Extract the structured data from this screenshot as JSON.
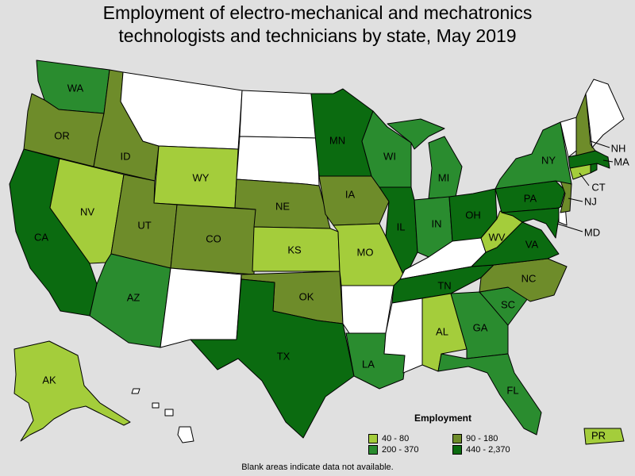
{
  "title_line1": "Employment of electro-mechanical and mechatronics",
  "title_line2": "technologists and technicians by state, May 2019",
  "note": "Blank areas indicate data not available.",
  "legend": {
    "title": "Employment",
    "items": [
      {
        "label": "40 - 80",
        "color": "#a4cd3b"
      },
      {
        "label": "90 - 180",
        "color": "#6e8c2a"
      },
      {
        "label": "200 - 370",
        "color": "#2a8c2f"
      },
      {
        "label": "440 - 2,370",
        "color": "#0b6b10"
      }
    ]
  },
  "colors": {
    "blank": "#ffffff",
    "c1": "#a4cd3b",
    "c2": "#6e8c2a",
    "c3": "#2a8c2f",
    "c4": "#0b6b10",
    "background": "#e0e0e0"
  },
  "states": [
    {
      "abbr": "WA",
      "class": "c3"
    },
    {
      "abbr": "OR",
      "class": "c2"
    },
    {
      "abbr": "CA",
      "class": "c4"
    },
    {
      "abbr": "NV",
      "class": "c1"
    },
    {
      "abbr": "ID",
      "class": "c2"
    },
    {
      "abbr": "MT",
      "class": "blank"
    },
    {
      "abbr": "WY",
      "class": "c1"
    },
    {
      "abbr": "UT",
      "class": "c2"
    },
    {
      "abbr": "AZ",
      "class": "c3"
    },
    {
      "abbr": "CO",
      "class": "c2"
    },
    {
      "abbr": "NM",
      "class": "blank"
    },
    {
      "abbr": "ND",
      "class": "blank"
    },
    {
      "abbr": "SD",
      "class": "blank"
    },
    {
      "abbr": "NE",
      "class": "c2"
    },
    {
      "abbr": "KS",
      "class": "c1"
    },
    {
      "abbr": "OK",
      "class": "c2"
    },
    {
      "abbr": "TX",
      "class": "c4"
    },
    {
      "abbr": "MN",
      "class": "c4"
    },
    {
      "abbr": "IA",
      "class": "c2"
    },
    {
      "abbr": "MO",
      "class": "c1"
    },
    {
      "abbr": "AR",
      "class": "blank"
    },
    {
      "abbr": "LA",
      "class": "c3"
    },
    {
      "abbr": "WI",
      "class": "c3"
    },
    {
      "abbr": "IL",
      "class": "c4"
    },
    {
      "abbr": "MI",
      "class": "c3"
    },
    {
      "abbr": "IN",
      "class": "c3"
    },
    {
      "abbr": "OH",
      "class": "c4"
    },
    {
      "abbr": "KY",
      "class": "blank"
    },
    {
      "abbr": "TN",
      "class": "c4"
    },
    {
      "abbr": "MS",
      "class": "blank"
    },
    {
      "abbr": "AL",
      "class": "c1"
    },
    {
      "abbr": "GA",
      "class": "c3"
    },
    {
      "abbr": "FL",
      "class": "c3"
    },
    {
      "abbr": "SC",
      "class": "c3"
    },
    {
      "abbr": "NC",
      "class": "c2"
    },
    {
      "abbr": "VA",
      "class": "c4"
    },
    {
      "abbr": "WV",
      "class": "c1"
    },
    {
      "abbr": "PA",
      "class": "c4"
    },
    {
      "abbr": "NY",
      "class": "c3"
    },
    {
      "abbr": "NJ",
      "class": "c2"
    },
    {
      "abbr": "MD",
      "class": "c4"
    },
    {
      "abbr": "DE",
      "class": "blank"
    },
    {
      "abbr": "CT",
      "class": "c1"
    },
    {
      "abbr": "MA",
      "class": "c4"
    },
    {
      "abbr": "RI",
      "class": "c4"
    },
    {
      "abbr": "NH",
      "class": "c2"
    },
    {
      "abbr": "VT",
      "class": "blank"
    },
    {
      "abbr": "ME",
      "class": "blank"
    },
    {
      "abbr": "AK",
      "class": "c1"
    },
    {
      "abbr": "HI",
      "class": "blank"
    },
    {
      "abbr": "PR",
      "class": "c1"
    }
  ]
}
